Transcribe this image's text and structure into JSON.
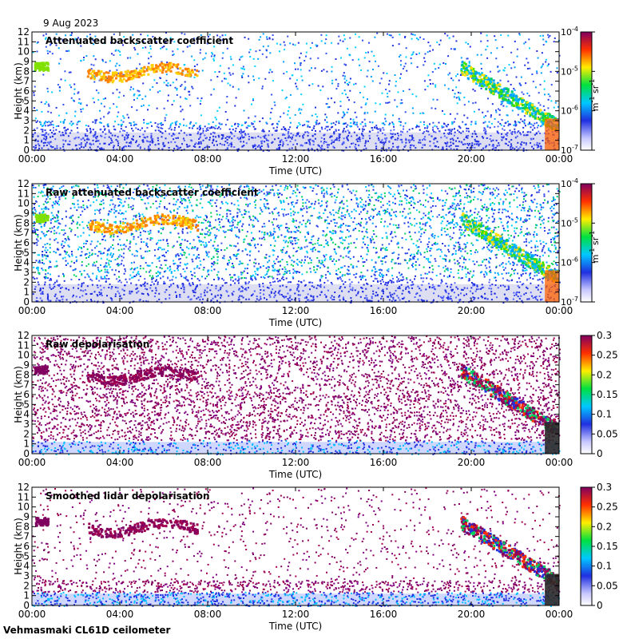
{
  "date": "9 Aug 2023",
  "footer": "Vehmasmaki CL61D ceilometer",
  "colors": {
    "frame": "#000000",
    "background": "#ffffff",
    "fog": "#e0e0e0"
  },
  "chart_data": [
    {
      "type": "heatmap",
      "title": "Attenuated backscatter coefficient",
      "xlabel": "Time (UTC)",
      "ylabel": "Height (km)",
      "xticks": [
        "00:00",
        "04:00",
        "08:00",
        "12:00",
        "16:00",
        "20:00",
        "00:00"
      ],
      "xlim_hours": [
        0,
        24
      ],
      "ylim": [
        0,
        12
      ],
      "yticks": [
        0,
        1,
        2,
        3,
        4,
        5,
        6,
        7,
        8,
        9,
        10,
        11,
        12
      ],
      "colorbar": {
        "scale": "log",
        "ticks": [
          {
            "base": "10",
            "exp": "-4"
          },
          {
            "base": "10",
            "exp": "-5"
          },
          {
            "base": "10",
            "exp": "-6"
          },
          {
            "base": "10",
            "exp": "-7"
          }
        ],
        "unit": "m",
        "unit_exp": "-1",
        "unit2": " sr",
        "unit2_exp": "-1"
      }
    },
    {
      "type": "heatmap",
      "title": "Raw attenuated backscatter coefficient",
      "xlabel": "Time (UTC)",
      "ylabel": "Height (km)",
      "xticks": [
        "00:00",
        "04:00",
        "08:00",
        "12:00",
        "16:00",
        "20:00",
        "00:00"
      ],
      "xlim_hours": [
        0,
        24
      ],
      "ylim": [
        0,
        12
      ],
      "yticks": [
        0,
        1,
        2,
        3,
        4,
        5,
        6,
        7,
        8,
        9,
        10,
        11,
        12
      ],
      "colorbar": {
        "scale": "log",
        "ticks": [
          {
            "base": "10",
            "exp": "-4"
          },
          {
            "base": "10",
            "exp": "-5"
          },
          {
            "base": "10",
            "exp": "-6"
          },
          {
            "base": "10",
            "exp": "-7"
          }
        ],
        "unit": "m",
        "unit_exp": "-1",
        "unit2": " sr",
        "unit2_exp": "-1"
      }
    },
    {
      "type": "heatmap",
      "title": "Raw depolarisation",
      "xlabel": "Time (UTC)",
      "ylabel": "Height (km)",
      "xticks": [
        "00:00",
        "04:00",
        "08:00",
        "12:00",
        "16:00",
        "20:00",
        "00:00"
      ],
      "xlim_hours": [
        0,
        24
      ],
      "ylim": [
        0,
        12
      ],
      "yticks": [
        0,
        1,
        2,
        3,
        4,
        5,
        6,
        7,
        8,
        9,
        10,
        11,
        12
      ],
      "colorbar": {
        "scale": "linear",
        "ticks": [
          "0.3",
          "0.25",
          "0.2",
          "0.15",
          "0.1",
          "0.05",
          "0"
        ]
      }
    },
    {
      "type": "heatmap",
      "title": "Smoothed lidar depolarisation",
      "xlabel": "Time (UTC)",
      "ylabel": "Height (km)",
      "xticks": [
        "00:00",
        "04:00",
        "08:00",
        "12:00",
        "16:00",
        "20:00",
        "00:00"
      ],
      "xlim_hours": [
        0,
        24
      ],
      "ylim": [
        0,
        12
      ],
      "yticks": [
        0,
        1,
        2,
        3,
        4,
        5,
        6,
        7,
        8,
        9,
        10,
        11,
        12
      ],
      "colorbar": {
        "scale": "linear",
        "ticks": [
          "0.3",
          "0.25",
          "0.2",
          "0.15",
          "0.1",
          "0.05",
          "0"
        ]
      }
    }
  ]
}
